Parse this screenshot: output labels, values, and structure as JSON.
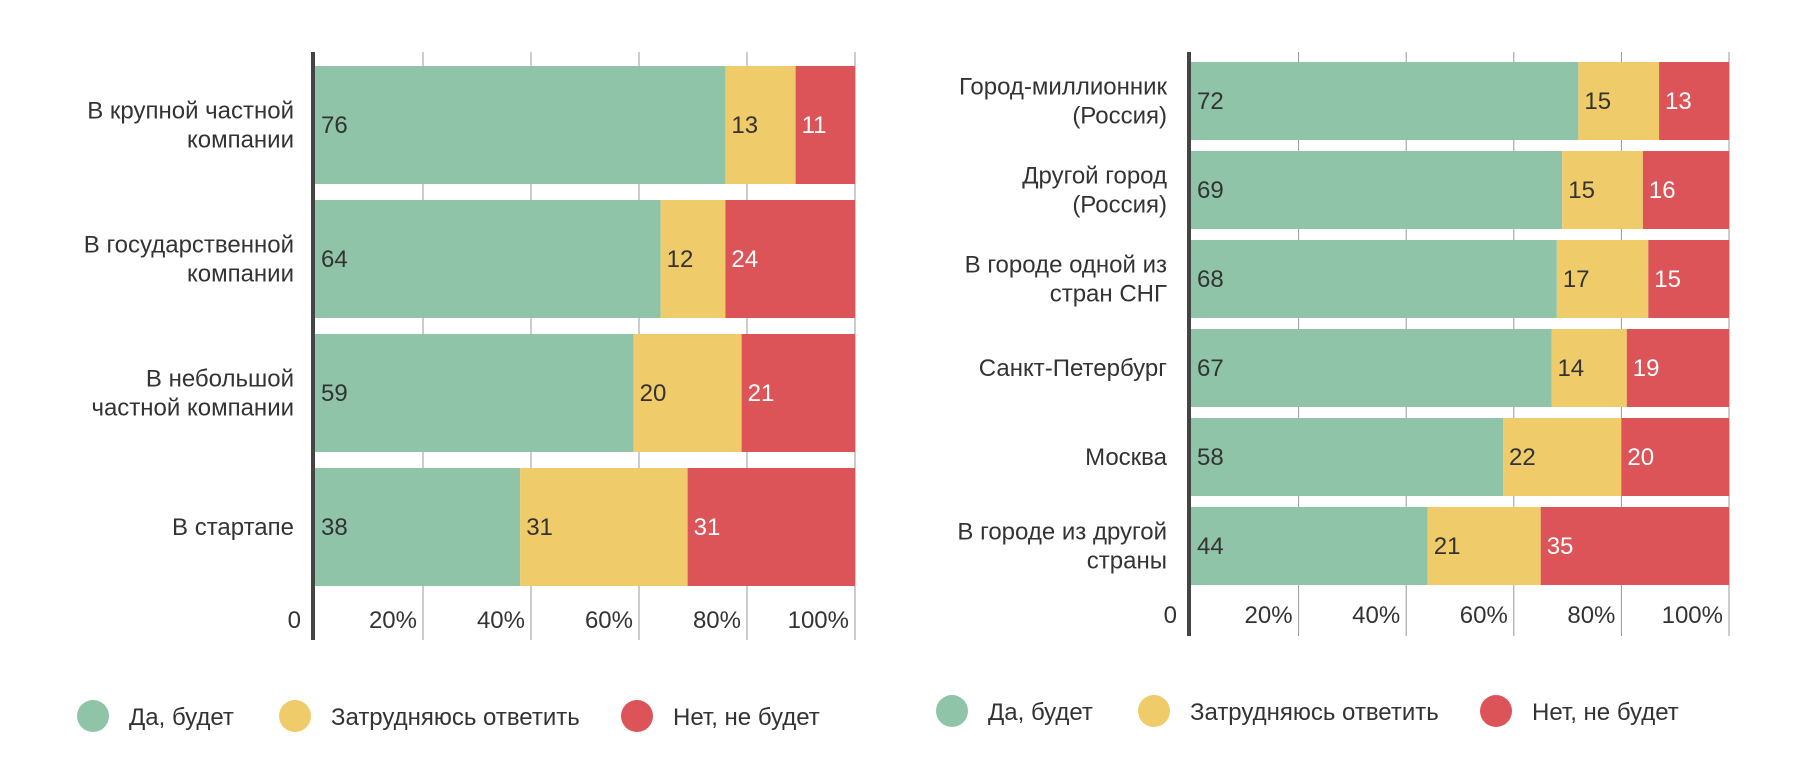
{
  "colors": {
    "yes": "#8fc4a8",
    "unsure": "#efcb6a",
    "no": "#dc5458",
    "text": "#333333",
    "grid": "#999999",
    "axis": "#444444"
  },
  "chart_data": [
    {
      "type": "bar",
      "orientation": "horizontal",
      "stacked": true,
      "title": "",
      "categories": [
        [
          "В крупной частной",
          "компании"
        ],
        [
          "В государственной",
          "компании"
        ],
        [
          "В небольшой",
          "частной компании"
        ],
        [
          "В стартапе"
        ]
      ],
      "series": [
        {
          "name": "Да, будет",
          "key": "yes",
          "values": [
            76,
            64,
            59,
            38
          ]
        },
        {
          "name": "Затрудняюсь ответить",
          "key": "unsure",
          "values": [
            13,
            12,
            20,
            31
          ]
        },
        {
          "name": "Нет, не будет",
          "key": "no",
          "values": [
            11,
            24,
            21,
            31
          ]
        }
      ],
      "xlim": [
        0,
        100
      ],
      "xticks": [
        "0",
        "20%",
        "40%",
        "60%",
        "80%",
        "100%"
      ],
      "grid": true,
      "legend": "bottom"
    },
    {
      "type": "bar",
      "orientation": "horizontal",
      "stacked": true,
      "title": "",
      "categories": [
        [
          "Город-миллионник",
          "(Россия)"
        ],
        [
          "Другой город",
          "(Россия)"
        ],
        [
          "В городе одной из",
          "стран СНГ"
        ],
        [
          "Санкт-Петербург"
        ],
        [
          "Москва"
        ],
        [
          "В городе из другой",
          "страны"
        ]
      ],
      "series": [
        {
          "name": "Да, будет",
          "key": "yes",
          "values": [
            72,
            69,
            68,
            67,
            58,
            44
          ]
        },
        {
          "name": "Затрудняюсь ответить",
          "key": "unsure",
          "values": [
            15,
            15,
            17,
            14,
            22,
            21
          ]
        },
        {
          "name": "Нет, не будет",
          "key": "no",
          "values": [
            13,
            16,
            15,
            19,
            20,
            35
          ]
        }
      ],
      "xlim": [
        0,
        100
      ],
      "xticks": [
        "0",
        "20%",
        "40%",
        "60%",
        "80%",
        "100%"
      ],
      "grid": true,
      "legend": "bottom"
    }
  ]
}
